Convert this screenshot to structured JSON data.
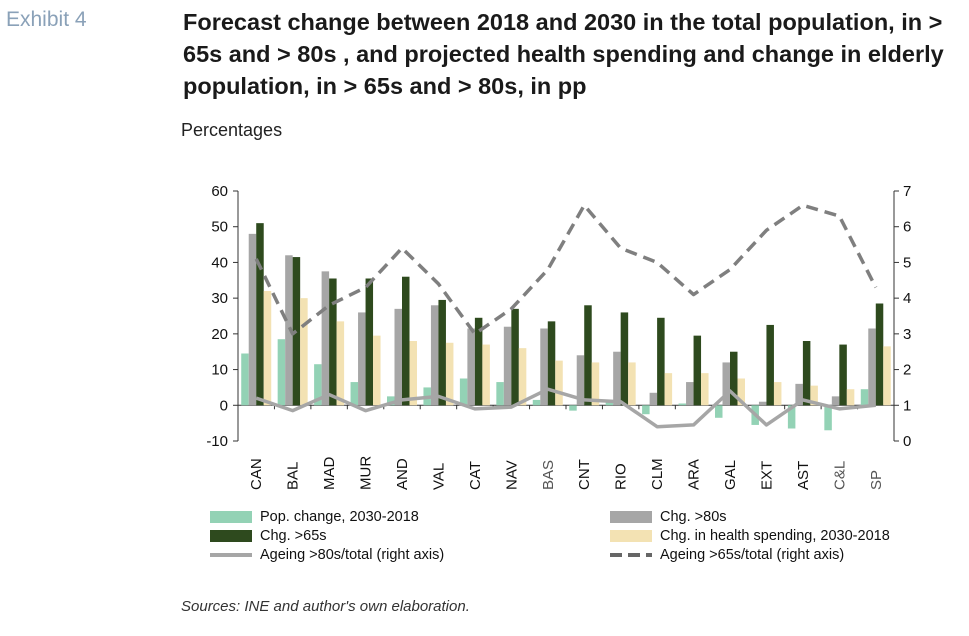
{
  "header": {
    "exhibit": "Exhibit 4",
    "title": "Forecast change between 2018 and 2030 in the total population, in > 65s and > 80s , and projected health spending and change in elderly population, in > 65s and > 80s, in pp",
    "subtitle": "Percentages"
  },
  "source": "Sources: INE and author's own elaboration.",
  "legend": {
    "pop": "Pop. change, 2030-2018",
    "c80": "Chg. >80s",
    "c65": "Chg. >65s",
    "health": "Chg. in health spending, 2030-2018",
    "a80": "Ageing >80s/total (right axis)",
    "a65": "Ageing >65s/total (right axis)"
  },
  "colors": {
    "pop": "#93d2b5",
    "c80": "#a6a6a6",
    "c65": "#2e4a1e",
    "health": "#f3e2b3",
    "a80": "#a6a6a6",
    "a65": "#7f7f7f"
  },
  "chart_data": {
    "type": "bar",
    "categories": [
      "CAN",
      "BAL",
      "MAD",
      "MUR",
      "AND",
      "VAL",
      "CAT",
      "NAV",
      "BAS",
      "CNT",
      "RIO",
      "CLM",
      "ARA",
      "GAL",
      "EXT",
      "AST",
      "C&L",
      "SP"
    ],
    "series": [
      {
        "name": "Pop. change, 2030-2018",
        "axis": "left",
        "kind": "bar",
        "values": [
          14.5,
          18.5,
          11.5,
          6.5,
          2.5,
          5,
          7.5,
          6.5,
          1.5,
          -1.5,
          1,
          -2.5,
          0.5,
          -3.5,
          -5.5,
          -6.5,
          -7,
          4.5
        ]
      },
      {
        "name": "Chg. >80s",
        "axis": "left",
        "kind": "bar",
        "values": [
          48,
          42,
          37.5,
          26,
          27,
          28,
          21.5,
          22,
          21.5,
          14,
          15,
          3.5,
          6.5,
          12,
          1,
          6,
          2.5,
          21.5
        ]
      },
      {
        "name": "Chg. >65s",
        "axis": "left",
        "kind": "bar",
        "values": [
          51,
          41.5,
          35.5,
          35.5,
          36,
          29.5,
          24.5,
          27,
          23.5,
          28,
          26,
          24.5,
          19.5,
          15,
          22.5,
          18,
          17,
          28.5
        ]
      },
      {
        "name": "Chg. in health spending, 2030-2018",
        "axis": "left",
        "kind": "bar",
        "values": [
          32,
          30,
          23.5,
          19.5,
          18,
          17.5,
          17,
          16,
          12.5,
          12,
          12,
          9,
          9,
          7.5,
          6.5,
          5.5,
          4.5,
          16.5
        ]
      },
      {
        "name": "Ageing >80s/total (right axis)",
        "axis": "right",
        "kind": "line",
        "values": [
          1.2,
          0.85,
          1.3,
          0.85,
          1.15,
          1.25,
          0.9,
          0.95,
          1.45,
          1.15,
          1.1,
          0.4,
          0.45,
          1.4,
          0.45,
          1.15,
          0.9,
          1.0
        ]
      },
      {
        "name": "Ageing >65s/total (right axis)",
        "axis": "right",
        "kind": "dashed-line",
        "values": [
          5.1,
          3.0,
          3.8,
          4.3,
          5.4,
          4.4,
          3.0,
          3.7,
          4.8,
          6.6,
          5.4,
          5.0,
          4.1,
          4.8,
          5.9,
          6.6,
          6.3,
          4.3
        ]
      }
    ],
    "ylim_left": [
      -10,
      60
    ],
    "yticks_left": [
      -10,
      0,
      10,
      20,
      30,
      40,
      50,
      60
    ],
    "ylim_right": [
      0,
      7
    ],
    "yticks_right": [
      0,
      1,
      2,
      3,
      4,
      5,
      6,
      7
    ],
    "grid": false,
    "legend_position": "bottom"
  }
}
